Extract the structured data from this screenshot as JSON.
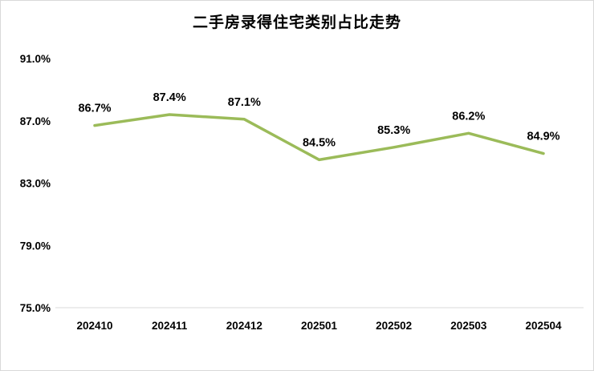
{
  "chart": {
    "line_color": "#9bbb59",
    "axis_color": "#d9d9d9",
    "text_color": "#000000"
  },
  "chart_data": {
    "type": "line",
    "title": "二手房录得住宅类别占比走势",
    "categories": [
      "202410",
      "202411",
      "202412",
      "202501",
      "202502",
      "202503",
      "202504"
    ],
    "values": [
      86.7,
      87.4,
      87.1,
      84.5,
      85.3,
      86.2,
      84.9
    ],
    "data_labels": [
      "86.7%",
      "87.4%",
      "87.1%",
      "84.5%",
      "85.3%",
      "86.2%",
      "84.9%"
    ],
    "y_ticks": [
      {
        "value": 91,
        "label": "91.0%"
      },
      {
        "value": 87,
        "label": "87.0%"
      },
      {
        "value": 83,
        "label": "83.0%"
      },
      {
        "value": 79,
        "label": "79.0%"
      },
      {
        "value": 75,
        "label": "75.0%"
      }
    ],
    "ylim": [
      75,
      91
    ],
    "xlabel": "",
    "ylabel": "",
    "grid": false,
    "legend": "none"
  }
}
